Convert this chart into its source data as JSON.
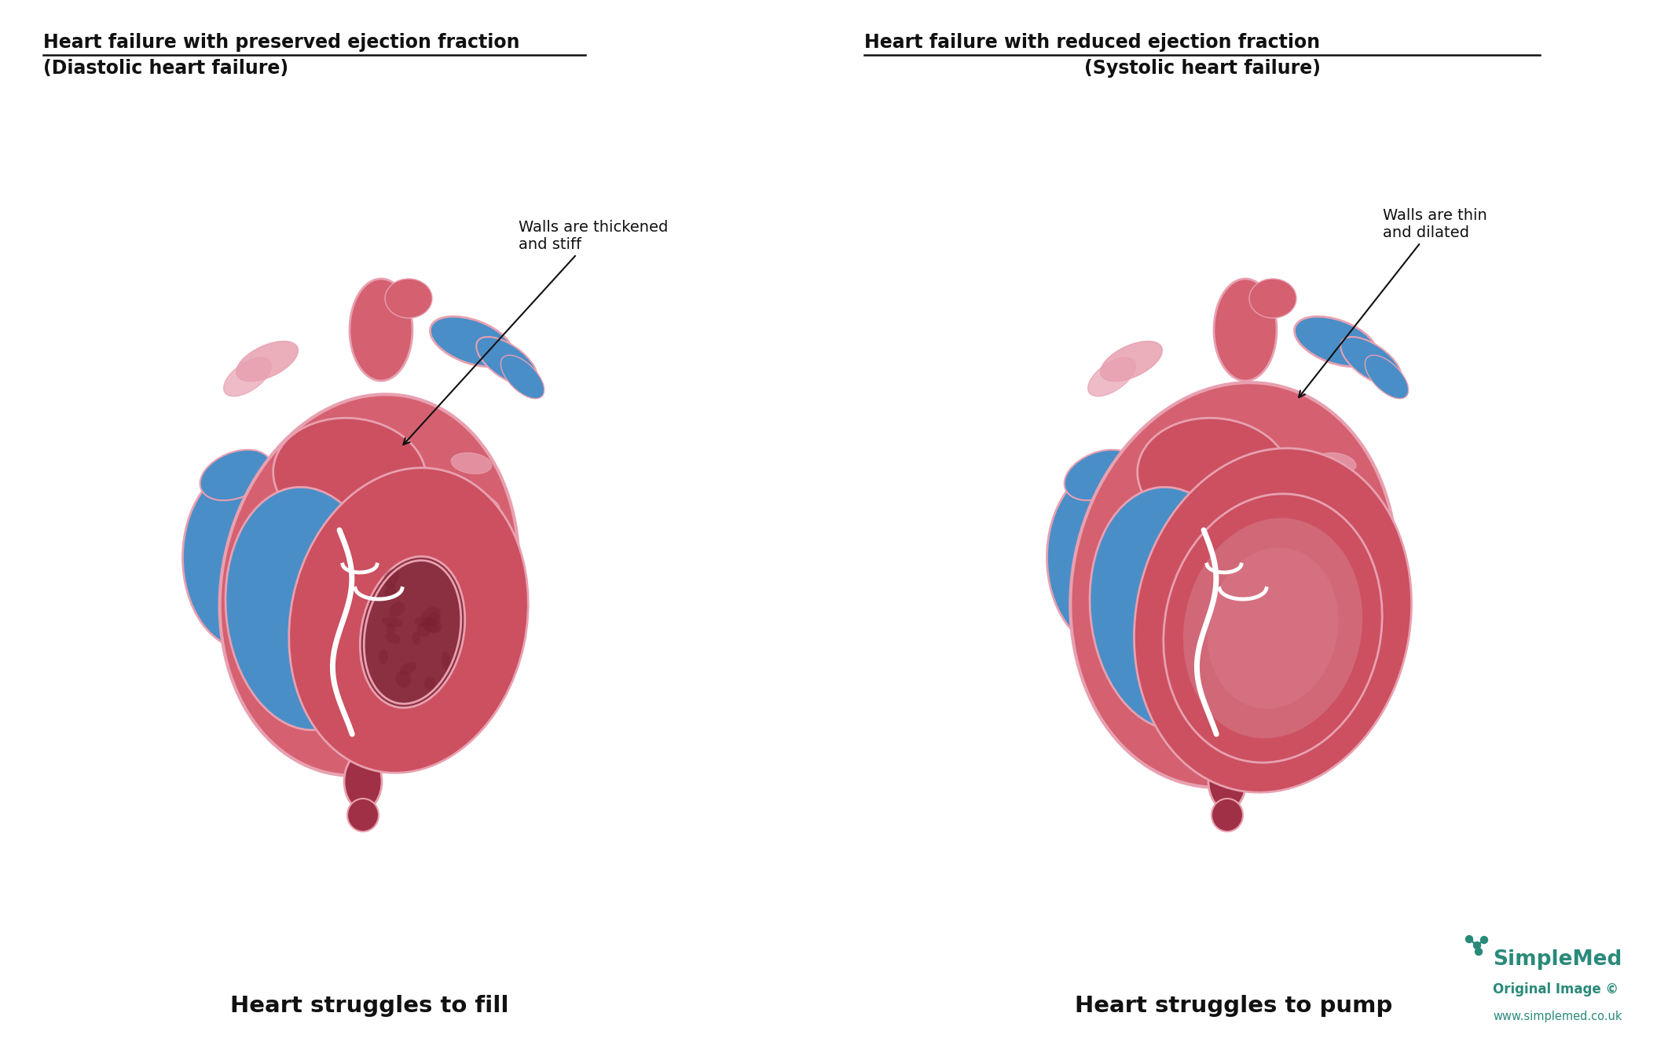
{
  "title_left_line1": "Heart failure with preserved ejection fraction",
  "title_left_line2": "(Diastolic heart failure)",
  "title_right_line1": "Heart failure with reduced ejection fraction",
  "title_right_line2": "(Systolic heart failure)",
  "caption_left": "Heart struggles to fill",
  "caption_right": "Heart struggles to pump",
  "annotation_left": "Walls are thickened\nand stiff",
  "annotation_right": "Walls are thin\nand dilated",
  "simplemed_text": "SimpleMed",
  "simplemed_sub": "Original Image ©",
  "simplemed_url": "www.simplemed.co.uk",
  "simplemed_color": "#2a8a7a",
  "bg_color": "#ffffff",
  "heart_red": "#cc5060",
  "heart_red_dark": "#a03045",
  "heart_red_outer": "#d46070",
  "heart_pink": "#e8a0b0",
  "heart_blue": "#4a8ec8",
  "heart_blue_dark": "#2a5888",
  "heart_dark_cavity": "#8b3040",
  "text_color": "#111111",
  "line_color": "#111111",
  "title_fontsize": 17,
  "caption_fontsize": 21,
  "ann_fontsize": 14
}
